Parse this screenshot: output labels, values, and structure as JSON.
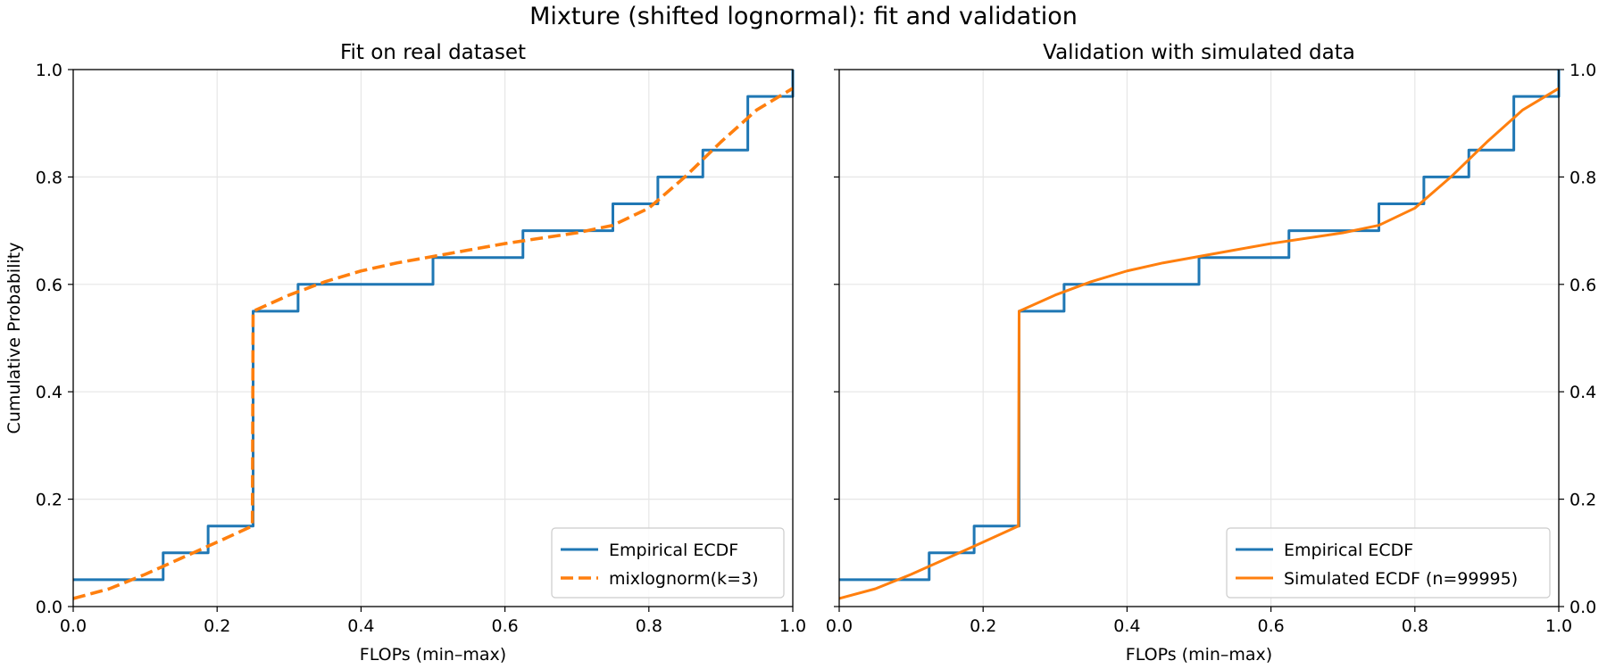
{
  "figure": {
    "suptitle": "Mixture (shifted lognormal): fit and validation"
  },
  "colors": {
    "empirical": "#1f77b4",
    "fit": "#ff7f0e"
  },
  "chart_data": [
    {
      "type": "line",
      "title": "Fit on real dataset",
      "xlabel": "FLOPs (min–max)",
      "ylabel": "Cumulative Probability",
      "xlim": [
        0.0,
        1.0
      ],
      "ylim": [
        0.0,
        1.0
      ],
      "xticks": [
        "0.0",
        "0.2",
        "0.4",
        "0.6",
        "0.8",
        "1.0"
      ],
      "yticks": [
        "0.0",
        "0.2",
        "0.4",
        "0.6",
        "0.8",
        "1.0"
      ],
      "grid": true,
      "legend_position": "lower-right",
      "series": [
        {
          "name": "Empirical ECDF",
          "style": "step",
          "x": [
            0.0,
            0.125,
            0.1875,
            0.25,
            0.3125,
            0.5,
            0.625,
            0.75,
            0.8125,
            0.875,
            0.9375,
            1.0
          ],
          "y": [
            0.05,
            0.1,
            0.15,
            0.55,
            0.6,
            0.65,
            0.7,
            0.75,
            0.8,
            0.85,
            0.95,
            1.0
          ]
        },
        {
          "name": "mixlognorm(k=3)",
          "style": "dashed",
          "x": [
            0.0,
            0.05,
            0.1,
            0.15,
            0.2,
            0.249,
            0.25,
            0.3,
            0.35,
            0.4,
            0.45,
            0.5,
            0.55,
            0.6,
            0.65,
            0.7,
            0.75,
            0.8,
            0.85,
            0.9,
            0.95,
            1.0
          ],
          "y": [
            0.015,
            0.033,
            0.06,
            0.09,
            0.12,
            0.15,
            0.55,
            0.58,
            0.605,
            0.625,
            0.64,
            0.652,
            0.664,
            0.676,
            0.686,
            0.696,
            0.71,
            0.742,
            0.8,
            0.865,
            0.925,
            0.965
          ]
        }
      ]
    },
    {
      "type": "line",
      "title": "Validation with simulated data",
      "xlabel": "FLOPs (min–max)",
      "ylabel": "",
      "xlim": [
        0.0,
        1.0
      ],
      "ylim": [
        0.0,
        1.0
      ],
      "xticks": [
        "0.0",
        "0.2",
        "0.4",
        "0.6",
        "0.8",
        "1.0"
      ],
      "yticks": [
        "0.0",
        "0.2",
        "0.4",
        "0.6",
        "0.8",
        "1.0"
      ],
      "grid": true,
      "legend_position": "lower-right",
      "series": [
        {
          "name": "Empirical ECDF",
          "style": "step",
          "x": [
            0.0,
            0.125,
            0.1875,
            0.25,
            0.3125,
            0.5,
            0.625,
            0.75,
            0.8125,
            0.875,
            0.9375,
            1.0
          ],
          "y": [
            0.05,
            0.1,
            0.15,
            0.55,
            0.6,
            0.65,
            0.7,
            0.75,
            0.8,
            0.85,
            0.95,
            1.0
          ]
        },
        {
          "name": "Simulated ECDF (n=99995)",
          "style": "solid",
          "x": [
            0.0,
            0.05,
            0.1,
            0.15,
            0.2,
            0.249,
            0.25,
            0.3,
            0.35,
            0.4,
            0.45,
            0.5,
            0.55,
            0.6,
            0.65,
            0.7,
            0.75,
            0.8,
            0.85,
            0.9,
            0.95,
            1.0
          ],
          "y": [
            0.015,
            0.033,
            0.06,
            0.09,
            0.12,
            0.15,
            0.55,
            0.58,
            0.605,
            0.625,
            0.64,
            0.652,
            0.664,
            0.676,
            0.686,
            0.696,
            0.71,
            0.742,
            0.8,
            0.865,
            0.925,
            0.965
          ]
        }
      ]
    }
  ]
}
